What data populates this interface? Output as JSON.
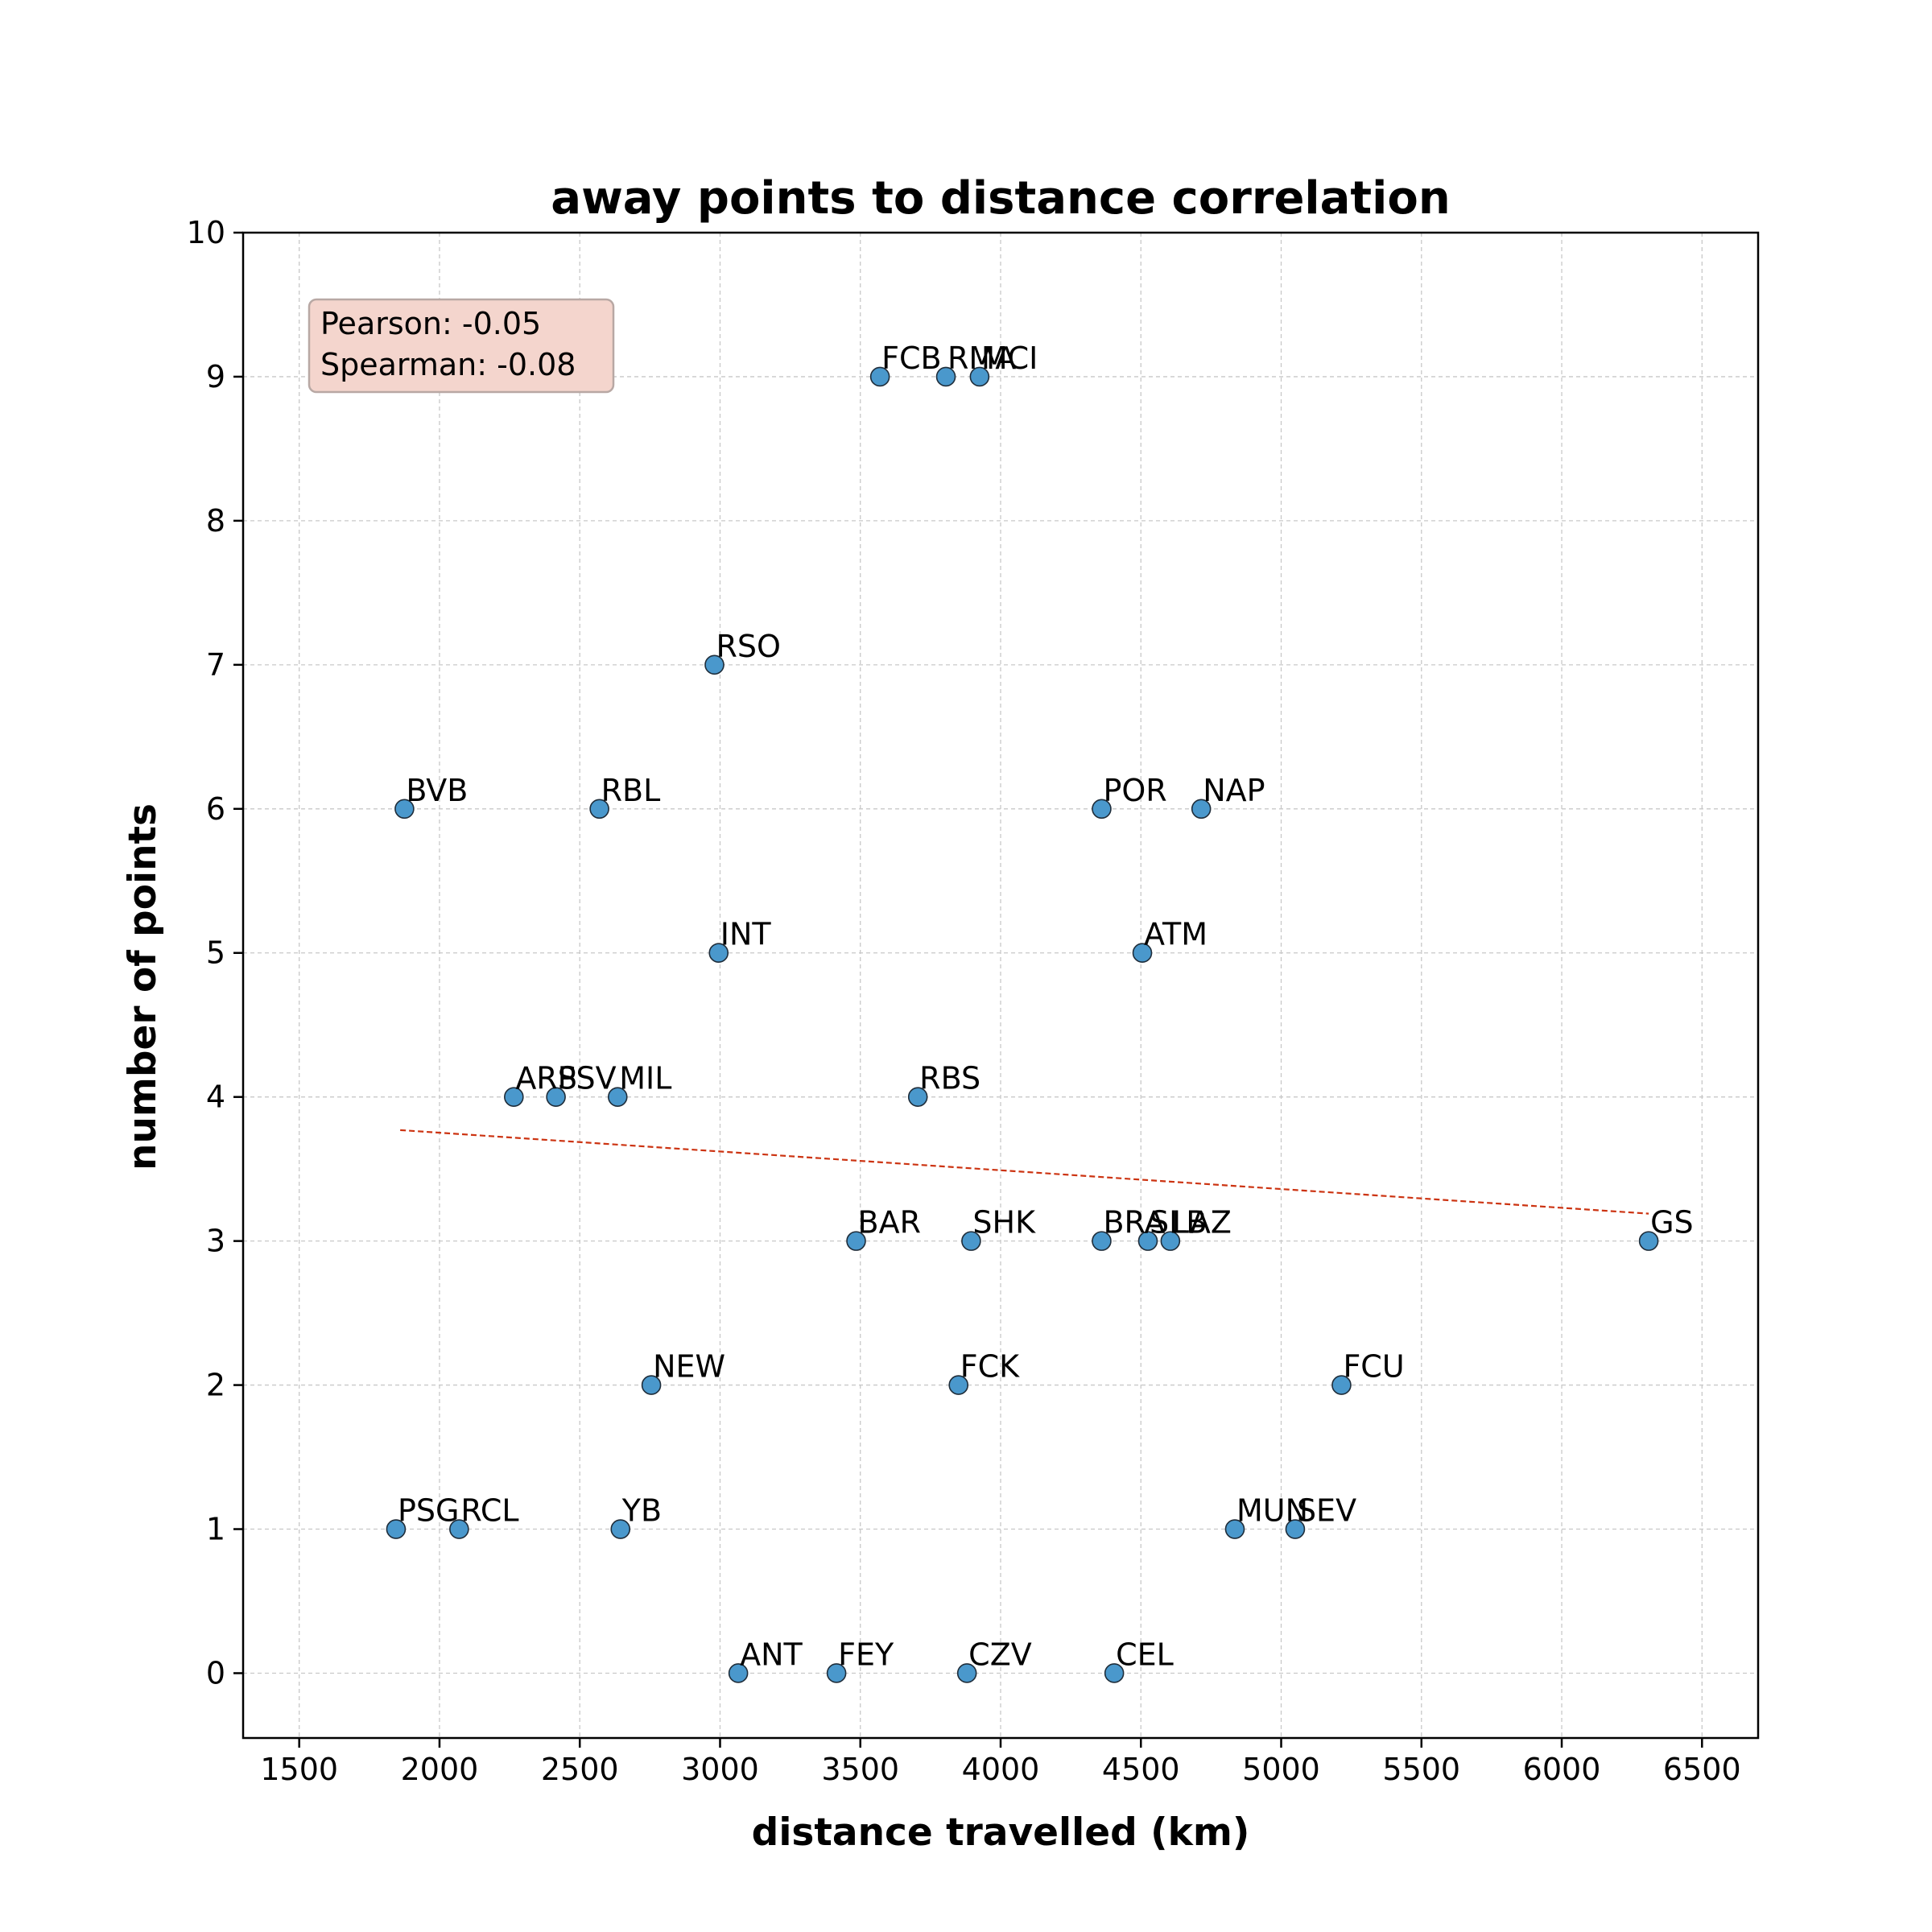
{
  "chart_data": {
    "type": "scatter",
    "title": "away points to distance correlation",
    "xlabel": "distance travelled (km)",
    "ylabel": "number of points",
    "xlim": [
      1300,
      6700
    ],
    "ylim": [
      -0.45,
      10
    ],
    "xticks": [
      1500,
      2000,
      2500,
      3000,
      3500,
      4000,
      4500,
      5000,
      5500,
      6000,
      6500
    ],
    "yticks": [
      0,
      1,
      2,
      3,
      4,
      5,
      6,
      7,
      8,
      9,
      10
    ],
    "grid": true,
    "stats": {
      "pearson_text": "Pearson: -0.05",
      "spearman_text": "Spearman: -0.08"
    },
    "trendline": {
      "x": [
        1860,
        6310
      ],
      "y": [
        3.77,
        3.19
      ]
    },
    "points": [
      {
        "label": "FCB",
        "x": 3570,
        "y": 9
      },
      {
        "label": "RMA",
        "x": 3805,
        "y": 9
      },
      {
        "label": "MCI",
        "x": 3925,
        "y": 9
      },
      {
        "label": "RSO",
        "x": 2980,
        "y": 7
      },
      {
        "label": "BVB",
        "x": 1875,
        "y": 6
      },
      {
        "label": "RBL",
        "x": 2570,
        "y": 6
      },
      {
        "label": "POR",
        "x": 4360,
        "y": 6
      },
      {
        "label": "NAP",
        "x": 4715,
        "y": 6
      },
      {
        "label": "INT",
        "x": 2995,
        "y": 5
      },
      {
        "label": "ATM",
        "x": 4505,
        "y": 5
      },
      {
        "label": "ARS",
        "x": 2265,
        "y": 4
      },
      {
        "label": "PSV",
        "x": 2415,
        "y": 4
      },
      {
        "label": "MIL",
        "x": 2635,
        "y": 4
      },
      {
        "label": "RBS",
        "x": 3705,
        "y": 4
      },
      {
        "label": "BAR",
        "x": 3485,
        "y": 3
      },
      {
        "label": "SHK",
        "x": 3895,
        "y": 3
      },
      {
        "label": "BRA",
        "x": 4360,
        "y": 3
      },
      {
        "label": "SLB",
        "x": 4525,
        "y": 3
      },
      {
        "label": "LAZ",
        "x": 4605,
        "y": 3
      },
      {
        "label": "GS",
        "x": 6310,
        "y": 3
      },
      {
        "label": "NEW",
        "x": 2755,
        "y": 2
      },
      {
        "label": "FCK",
        "x": 3850,
        "y": 2
      },
      {
        "label": "FCU",
        "x": 5215,
        "y": 2
      },
      {
        "label": "PSG",
        "x": 1845,
        "y": 1
      },
      {
        "label": "RCL",
        "x": 2070,
        "y": 1
      },
      {
        "label": "YB",
        "x": 2645,
        "y": 1
      },
      {
        "label": "MUN",
        "x": 4835,
        "y": 1
      },
      {
        "label": "SEV",
        "x": 5050,
        "y": 1
      },
      {
        "label": "ANT",
        "x": 3065,
        "y": 0
      },
      {
        "label": "FEY",
        "x": 3415,
        "y": 0
      },
      {
        "label": "CZV",
        "x": 3880,
        "y": 0
      },
      {
        "label": "CEL",
        "x": 4405,
        "y": 0
      }
    ],
    "colors": {
      "marker_fill": "#4a98cc",
      "marker_edge": "#1f2d3a",
      "trendline": "#cc3311",
      "stats_box_fill": "#f4d5cd",
      "stats_box_edge": "#b8a8a4",
      "grid": "#c8c8c8"
    }
  }
}
